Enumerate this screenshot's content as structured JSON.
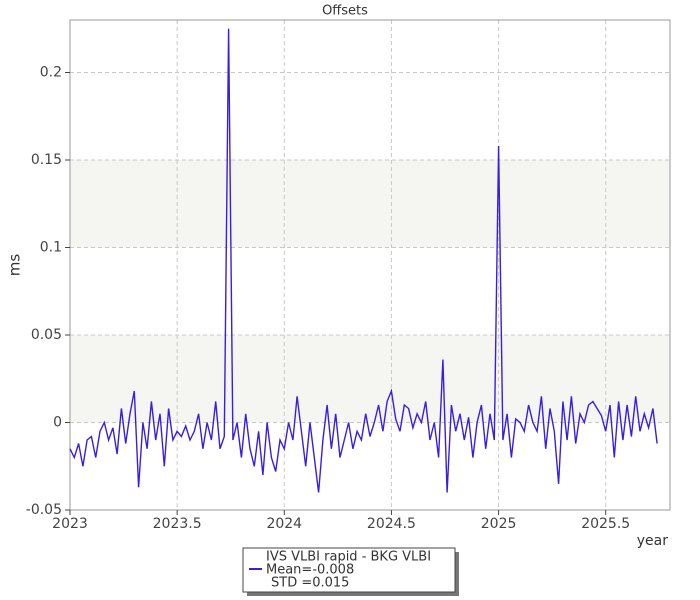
{
  "chart_data": {
    "type": "line",
    "title": "Offsets",
    "xlabel": "year",
    "ylabel": "ms",
    "xlim": [
      2023,
      2025.8
    ],
    "ylim": [
      -0.05,
      0.23
    ],
    "xticks": [
      2023,
      2023.5,
      2024,
      2024.5,
      2025,
      2025.5
    ],
    "yticks": [
      -0.05,
      0,
      0.05,
      0.1,
      0.15,
      0.2
    ],
    "grid": true,
    "legend": "bottom",
    "annotations": [
      "Mean=-0.008",
      "STD =0.015"
    ],
    "series": [
      {
        "name": "IVS VLBI rapid - BKG VLBI",
        "color": "#3a1ee0",
        "x": [
          2023.0,
          2023.02,
          2023.04,
          2023.06,
          2023.08,
          2023.1,
          2023.12,
          2023.14,
          2023.16,
          2023.18,
          2023.2,
          2023.22,
          2023.24,
          2023.26,
          2023.28,
          2023.3,
          2023.32,
          2023.34,
          2023.36,
          2023.38,
          2023.4,
          2023.42,
          2023.44,
          2023.46,
          2023.48,
          2023.5,
          2023.52,
          2023.54,
          2023.56,
          2023.58,
          2023.6,
          2023.62,
          2023.64,
          2023.66,
          2023.68,
          2023.7,
          2023.72,
          2023.74,
          2023.76,
          2023.78,
          2023.8,
          2023.82,
          2023.84,
          2023.86,
          2023.88,
          2023.9,
          2023.92,
          2023.94,
          2023.96,
          2023.98,
          2024.0,
          2024.02,
          2024.04,
          2024.06,
          2024.08,
          2024.1,
          2024.12,
          2024.14,
          2024.16,
          2024.18,
          2024.2,
          2024.22,
          2024.24,
          2024.26,
          2024.28,
          2024.3,
          2024.32,
          2024.34,
          2024.36,
          2024.38,
          2024.4,
          2024.42,
          2024.44,
          2024.46,
          2024.48,
          2024.5,
          2024.52,
          2024.54,
          2024.56,
          2024.58,
          2024.6,
          2024.62,
          2024.64,
          2024.66,
          2024.68,
          2024.7,
          2024.72,
          2024.74,
          2024.76,
          2024.78,
          2024.8,
          2024.82,
          2024.84,
          2024.86,
          2024.88,
          2024.9,
          2024.92,
          2024.94,
          2024.96,
          2024.98,
          2025.0,
          2025.02,
          2025.04,
          2025.06,
          2025.08,
          2025.1,
          2025.12,
          2025.14,
          2025.16,
          2025.18,
          2025.2,
          2025.22,
          2025.24,
          2025.26,
          2025.28,
          2025.3,
          2025.32,
          2025.34,
          2025.36,
          2025.38,
          2025.4,
          2025.42,
          2025.44,
          2025.46,
          2025.48,
          2025.5,
          2025.52,
          2025.54,
          2025.56,
          2025.58,
          2025.6,
          2025.62,
          2025.64,
          2025.66,
          2025.68,
          2025.7,
          2025.72,
          2025.74
        ],
        "values": [
          -0.015,
          -0.02,
          -0.012,
          -0.025,
          -0.01,
          -0.008,
          -0.02,
          -0.005,
          0.0,
          -0.01,
          -0.003,
          -0.018,
          0.008,
          -0.012,
          0.005,
          0.018,
          -0.037,
          0.0,
          -0.015,
          0.012,
          -0.01,
          0.005,
          -0.025,
          0.008,
          -0.01,
          -0.005,
          -0.008,
          -0.002,
          -0.01,
          -0.005,
          0.005,
          -0.015,
          0.0,
          -0.01,
          0.012,
          -0.015,
          -0.008,
          0.225,
          -0.01,
          0.0,
          -0.02,
          0.005,
          -0.015,
          -0.025,
          -0.005,
          -0.03,
          0.0,
          -0.02,
          -0.028,
          -0.01,
          -0.015,
          0.0,
          -0.01,
          0.015,
          -0.005,
          -0.025,
          0.0,
          -0.02,
          -0.04,
          -0.01,
          0.01,
          -0.015,
          0.005,
          -0.02,
          -0.01,
          0.0,
          -0.015,
          -0.005,
          -0.01,
          0.005,
          -0.008,
          0.0,
          0.01,
          -0.005,
          0.012,
          0.018,
          0.002,
          -0.005,
          0.01,
          0.008,
          -0.003,
          0.005,
          0.0,
          0.012,
          -0.01,
          0.0,
          -0.02,
          0.036,
          -0.04,
          0.01,
          -0.005,
          0.005,
          -0.01,
          0.003,
          -0.02,
          0.0,
          0.01,
          -0.015,
          0.005,
          -0.01,
          0.158,
          -0.01,
          0.005,
          -0.02,
          0.002,
          0.0,
          -0.005,
          0.01,
          0.0,
          -0.005,
          0.015,
          -0.015,
          0.008,
          -0.005,
          -0.035,
          0.012,
          -0.01,
          0.015,
          -0.012,
          0.005,
          0.0,
          0.01,
          0.012,
          0.008,
          0.004,
          -0.005,
          0.01,
          -0.02,
          0.012,
          -0.01,
          0.01,
          -0.008,
          0.015,
          -0.005,
          0.005,
          -0.003,
          0.008,
          -0.012
        ]
      }
    ]
  }
}
